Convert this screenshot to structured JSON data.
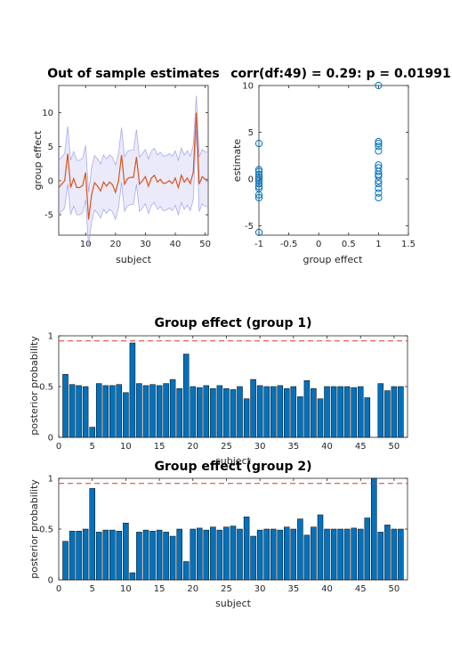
{
  "colors": {
    "line": "#d95319",
    "band": "#aaaaf0",
    "marker": "#0072bd",
    "bar": "#0072bd",
    "threshold": "#e03030",
    "axis": "#262626"
  },
  "chart_data": [
    {
      "type": "line",
      "title": "Out of sample estimates",
      "xlabel": "subject",
      "ylabel": "group effect",
      "xlim": [
        1,
        51
      ],
      "ylim": [
        -8,
        14
      ],
      "xticks": [
        10,
        20,
        30,
        40,
        50
      ],
      "yticks": [
        -5,
        0,
        5,
        10
      ],
      "x": [
        1,
        2,
        3,
        4,
        5,
        6,
        7,
        8,
        9,
        10,
        11,
        12,
        13,
        14,
        15,
        16,
        17,
        18,
        19,
        20,
        21,
        22,
        23,
        24,
        25,
        26,
        27,
        28,
        29,
        30,
        31,
        32,
        33,
        34,
        35,
        36,
        37,
        38,
        39,
        40,
        41,
        42,
        43,
        44,
        45,
        46,
        47,
        48,
        49,
        50,
        51
      ],
      "series": [
        {
          "values": [
            -1.0,
            -0.5,
            0.0,
            4.0,
            -1.0,
            0.3,
            -1.0,
            -1.0,
            -0.7,
            1.2,
            -5.7,
            -2.0,
            -0.3,
            -0.8,
            -1.5,
            -0.2,
            -0.8,
            -0.2,
            -0.6,
            -1.7,
            0.0,
            3.8,
            -0.5,
            0.3,
            0.5,
            0.5,
            3.5,
            -0.5,
            0.0,
            0.6,
            -0.8,
            0.4,
            0.8,
            -0.2,
            0.2,
            -0.4,
            -0.3,
            0.0,
            -0.4,
            0.4,
            -1.0,
            0.8,
            -0.2,
            0.4,
            -0.4,
            1.2,
            10.0,
            -0.5,
            0.6,
            0.2,
            0.2
          ]
        }
      ],
      "band": {
        "lower": [
          -5.0,
          -4.5,
          -4.0,
          -0.5,
          -5.0,
          -3.7,
          -5.0,
          -5.0,
          -4.7,
          -2.8,
          -9.7,
          -6.0,
          -4.3,
          -4.8,
          -5.5,
          -4.2,
          -4.8,
          -4.2,
          -4.6,
          -5.7,
          -4.0,
          -0.2,
          -4.5,
          -3.7,
          -3.5,
          -3.5,
          -0.5,
          -4.5,
          -4.0,
          -3.4,
          -4.8,
          -3.6,
          -3.2,
          -4.2,
          -3.8,
          -4.4,
          -4.3,
          -4.0,
          -4.4,
          -3.6,
          -5.0,
          -3.2,
          -4.2,
          -3.6,
          -4.4,
          -2.8,
          7.5,
          -4.5,
          -3.4,
          -3.8,
          -3.8
        ],
        "upper": [
          3.0,
          3.5,
          4.0,
          8.0,
          3.0,
          4.3,
          3.0,
          3.0,
          3.3,
          5.2,
          -1.7,
          2.0,
          3.7,
          3.2,
          2.5,
          3.8,
          3.2,
          3.8,
          3.4,
          2.3,
          4.0,
          7.8,
          3.5,
          4.3,
          4.5,
          4.5,
          7.5,
          3.5,
          4.0,
          4.6,
          3.2,
          4.4,
          4.8,
          3.8,
          4.2,
          3.6,
          3.7,
          4.0,
          3.6,
          4.4,
          3.0,
          4.8,
          3.8,
          4.4,
          3.6,
          5.2,
          12.5,
          3.5,
          4.6,
          4.2,
          4.2
        ]
      }
    },
    {
      "type": "scatter",
      "title": "corr(df:49) = 0.29: p = 0.01991",
      "xlabel": "group effect",
      "ylabel": "estimate",
      "xlim": [
        -1,
        1.5
      ],
      "ylim": [
        -6,
        10
      ],
      "xticks": [
        -1,
        -0.5,
        0,
        0.5,
        1,
        1.5
      ],
      "yticks": [
        -5,
        0,
        5,
        10
      ],
      "points": [
        [
          -1,
          3.8
        ],
        [
          -1,
          1.0
        ],
        [
          -1,
          0.8
        ],
        [
          -1,
          0.5
        ],
        [
          -1,
          0.2
        ],
        [
          -1,
          0.0
        ],
        [
          -1,
          -0.2
        ],
        [
          -1,
          -0.5
        ],
        [
          -1,
          -0.8
        ],
        [
          -1,
          -1.0
        ],
        [
          -1,
          -1.7
        ],
        [
          -1,
          -2.0
        ],
        [
          -1,
          -5.7
        ],
        [
          1,
          10.0
        ],
        [
          1,
          4.0
        ],
        [
          1,
          3.8
        ],
        [
          1,
          3.5
        ],
        [
          1,
          3.0
        ],
        [
          1,
          1.5
        ],
        [
          1,
          1.2
        ],
        [
          1,
          0.8
        ],
        [
          1,
          0.5
        ],
        [
          1,
          0.3
        ],
        [
          1,
          -0.2
        ],
        [
          1,
          -0.5
        ],
        [
          1,
          -1.0
        ],
        [
          1,
          -1.5
        ],
        [
          1,
          -2.0
        ]
      ]
    },
    {
      "type": "bar",
      "title": "Group effect (group 1)",
      "xlabel": "subject",
      "ylabel": "posterior probability",
      "xlim": [
        0,
        52
      ],
      "ylim": [
        0,
        1
      ],
      "xticks": [
        0,
        5,
        10,
        15,
        20,
        25,
        30,
        35,
        40,
        45,
        50
      ],
      "yticks": [
        0,
        0.5,
        1
      ],
      "yticklabels": [
        "0",
        "0.5",
        "1"
      ],
      "threshold": 0.95,
      "x": [
        1,
        2,
        3,
        4,
        5,
        6,
        7,
        8,
        9,
        10,
        11,
        12,
        13,
        14,
        15,
        16,
        17,
        18,
        19,
        20,
        21,
        22,
        23,
        24,
        25,
        26,
        27,
        28,
        29,
        30,
        31,
        32,
        33,
        34,
        35,
        36,
        37,
        38,
        39,
        40,
        41,
        42,
        43,
        44,
        45,
        46,
        47,
        48,
        49,
        50,
        51
      ],
      "values": [
        0.62,
        0.52,
        0.51,
        0.5,
        0.1,
        0.53,
        0.51,
        0.51,
        0.52,
        0.44,
        0.93,
        0.53,
        0.51,
        0.52,
        0.51,
        0.53,
        0.57,
        0.48,
        0.82,
        0.5,
        0.49,
        0.51,
        0.48,
        0.51,
        0.48,
        0.47,
        0.5,
        0.38,
        0.57,
        0.51,
        0.5,
        0.5,
        0.51,
        0.48,
        0.5,
        0.4,
        0.56,
        0.48,
        0.38,
        0.5,
        0.5,
        0.5,
        0.5,
        0.49,
        0.5,
        0.39,
        0,
        0.53,
        0.46,
        0.5,
        0.5
      ]
    },
    {
      "type": "bar",
      "title": "Group effect (group 2)",
      "xlabel": "subject",
      "ylabel": "posterior probability",
      "xlim": [
        0,
        52
      ],
      "ylim": [
        0,
        1
      ],
      "xticks": [
        0,
        5,
        10,
        15,
        20,
        25,
        30,
        35,
        40,
        45,
        50
      ],
      "yticks": [
        0,
        0.5,
        1
      ],
      "yticklabels": [
        "0",
        "0.5",
        "1"
      ],
      "threshold": 0.95,
      "x": [
        1,
        2,
        3,
        4,
        5,
        6,
        7,
        8,
        9,
        10,
        11,
        12,
        13,
        14,
        15,
        16,
        17,
        18,
        19,
        20,
        21,
        22,
        23,
        24,
        25,
        26,
        27,
        28,
        29,
        30,
        31,
        32,
        33,
        34,
        35,
        36,
        37,
        38,
        39,
        40,
        41,
        42,
        43,
        44,
        45,
        46,
        47,
        48,
        49,
        50,
        51
      ],
      "values": [
        0.38,
        0.48,
        0.48,
        0.5,
        0.9,
        0.47,
        0.49,
        0.49,
        0.48,
        0.56,
        0.07,
        0.47,
        0.49,
        0.48,
        0.49,
        0.47,
        0.43,
        0.5,
        0.18,
        0.5,
        0.51,
        0.49,
        0.52,
        0.49,
        0.52,
        0.53,
        0.5,
        0.62,
        0.43,
        0.49,
        0.5,
        0.5,
        0.49,
        0.52,
        0.5,
        0.6,
        0.44,
        0.52,
        0.64,
        0.5,
        0.5,
        0.5,
        0.5,
        0.51,
        0.5,
        0.61,
        1.0,
        0.47,
        0.54,
        0.5,
        0.5
      ]
    }
  ]
}
